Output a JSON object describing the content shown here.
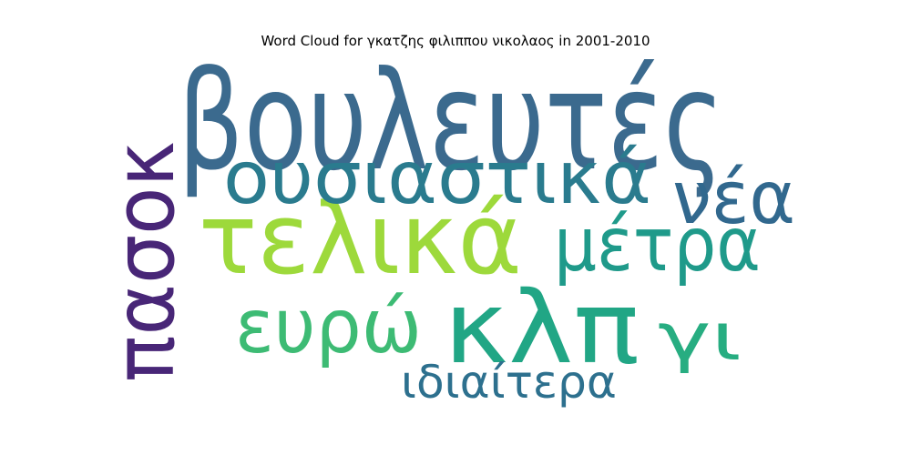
{
  "chart_data": {
    "type": "wordcloud",
    "title": "Word Cloud for γκατζης φιλιππου νικολαος in 2001-2010",
    "words": [
      {
        "text": "βουλευτές",
        "weight": 1.0,
        "color": "#3b6a8e"
      },
      {
        "text": "τελικά",
        "weight": 0.8,
        "color": "#9dd93b"
      },
      {
        "text": "κλπ",
        "weight": 0.78,
        "color": "#21a685"
      },
      {
        "text": "πασοκ",
        "weight": 0.7,
        "color": "#482677"
      },
      {
        "text": "ουσιαστικά",
        "weight": 0.55,
        "color": "#2a7b8e"
      },
      {
        "text": "μέτρα",
        "weight": 0.52,
        "color": "#1f9a8a"
      },
      {
        "text": "ευρώ",
        "weight": 0.5,
        "color": "#3dbb74"
      },
      {
        "text": "νέα",
        "weight": 0.48,
        "color": "#31688e"
      },
      {
        "text": "γι",
        "weight": 0.4,
        "color": "#27ad81"
      },
      {
        "text": "ιδιαίτερα",
        "weight": 0.3,
        "color": "#2d708e"
      }
    ]
  }
}
